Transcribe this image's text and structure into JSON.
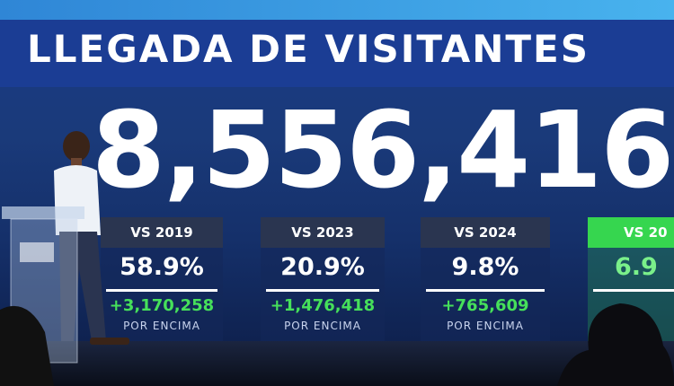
{
  "title": "LLEGADA DE VISITANTES",
  "total": "8,556,416",
  "comparisons": [
    {
      "label": "VS 2019",
      "percent": "58.9%",
      "increase": "+3,170,258",
      "note": "POR ENCIMA"
    },
    {
      "label": "VS 2023",
      "percent": "20.9%",
      "increase": "+1,476,418",
      "note": "POR ENCIMA"
    },
    {
      "label": "VS 2024",
      "percent": "9.8%",
      "increase": "+765,609",
      "note": "POR ENCIMA"
    },
    {
      "label": "VS 20",
      "percent": "6.9"
    }
  ]
}
